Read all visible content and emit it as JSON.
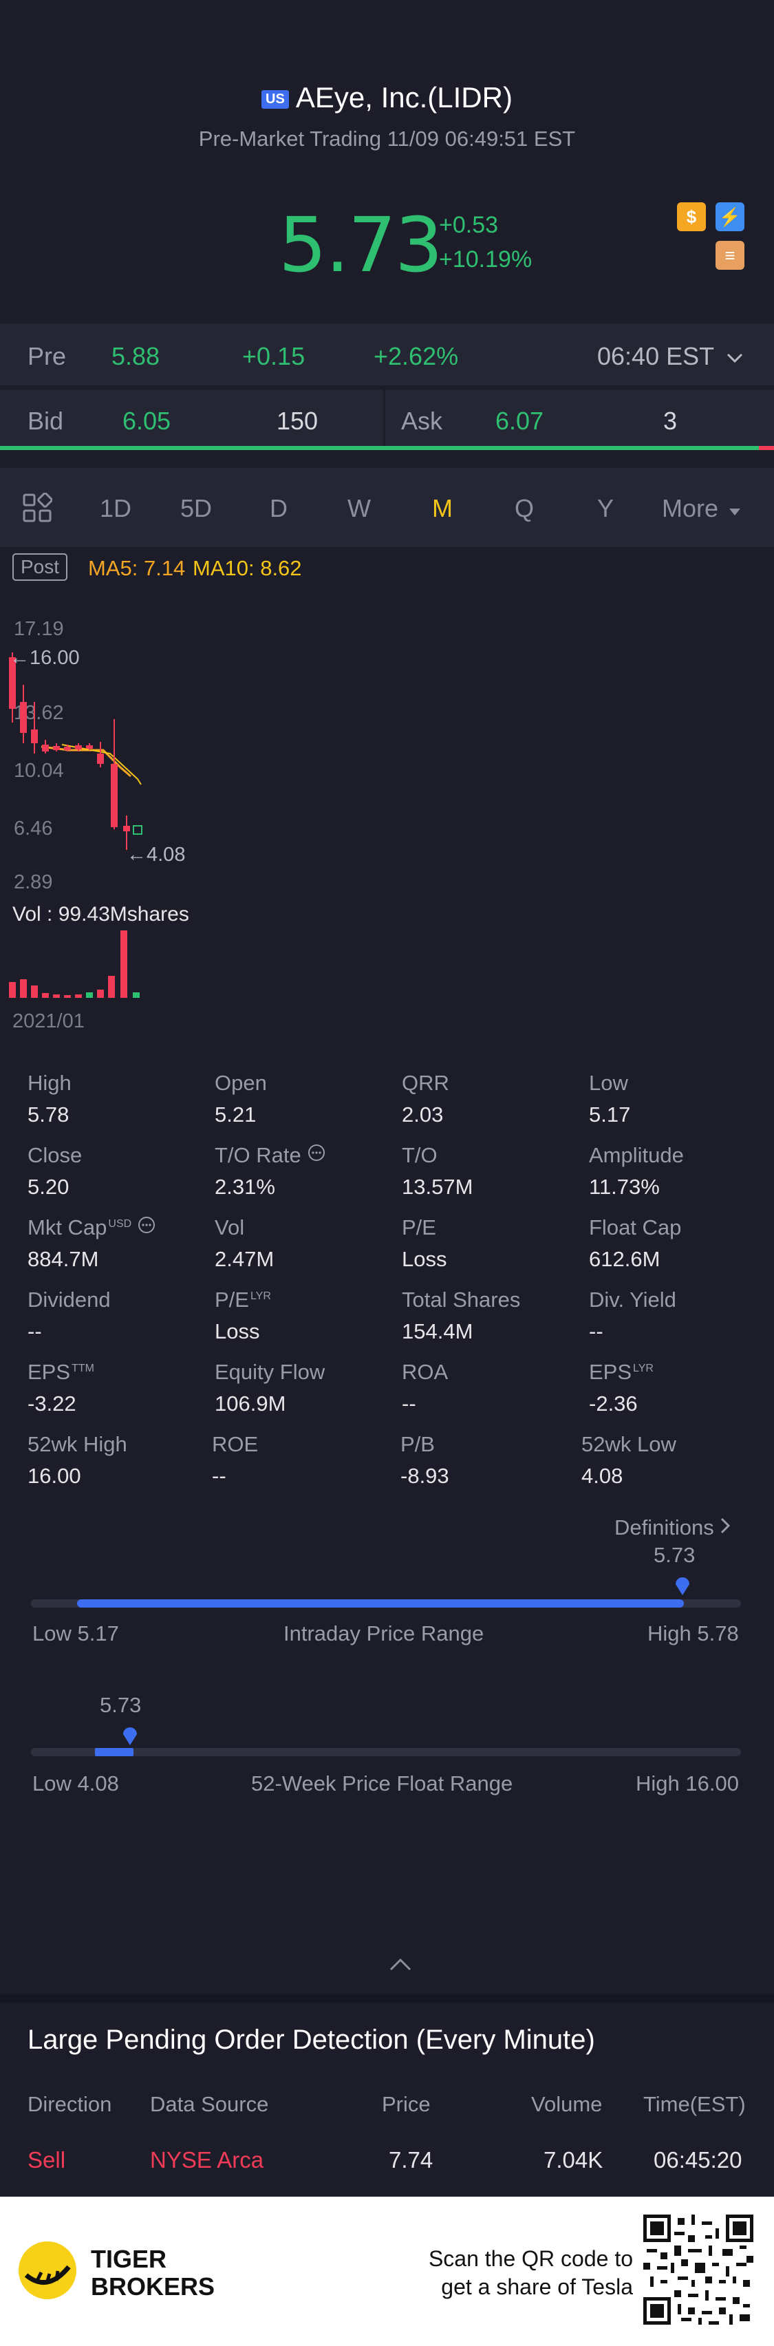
{
  "header": {
    "market_badge": "US",
    "title": "AEye, Inc.(LIDR)",
    "subtitle": "Pre-Market Trading 11/09 06:49:51 EST"
  },
  "quote": {
    "price": "5.73",
    "change": "+0.53",
    "change_pct": "+10.19%"
  },
  "premarket": {
    "label": "Pre",
    "price": "5.88",
    "change": "+0.15",
    "change_pct": "+2.62%",
    "time": "06:40 EST"
  },
  "orderbook": {
    "bid_label": "Bid",
    "bid_price": "6.05",
    "bid_size": "150",
    "ask_label": "Ask",
    "ask_price": "6.07",
    "ask_size": "3",
    "bid_ratio": 0.98
  },
  "tabs": [
    "1D",
    "5D",
    "D",
    "W",
    "M",
    "Q",
    "Y",
    "More"
  ],
  "active_tab": "M",
  "indicators": {
    "session": "Post",
    "ma5": "MA5: 7.14",
    "ma10": "MA10: 8.62"
  },
  "chart_data": {
    "type": "candlestick",
    "y_ticks": [
      "17.19",
      "13.62",
      "10.04",
      "6.46",
      "2.89"
    ],
    "ylim": [
      2.89,
      17.19
    ],
    "annotations": [
      "16.00",
      "4.08"
    ],
    "volume_label": "Vol  : 99.43Mshares",
    "x_label": "2021/01"
  },
  "stats": [
    {
      "label": "High",
      "value": "5.78"
    },
    {
      "label": "Open",
      "value": "5.21"
    },
    {
      "label": "QRR",
      "value": "2.03"
    },
    {
      "label": "Low",
      "value": "5.17"
    },
    {
      "label": "Close",
      "value": "5.20"
    },
    {
      "label": "T/O Rate",
      "value": "2.31%"
    },
    {
      "label": "T/O",
      "value": "13.57M"
    },
    {
      "label": "Amplitude",
      "value": "11.73%"
    },
    {
      "label": "Mkt Cap",
      "sup": "USD",
      "value": "884.7M"
    },
    {
      "label": "Vol",
      "value": "2.47M"
    },
    {
      "label": "P/E",
      "value": "Loss"
    },
    {
      "label": "Float Cap",
      "value": "612.6M"
    },
    {
      "label": "Dividend",
      "value": "--"
    },
    {
      "label": "P/E",
      "sup": "LYR",
      "value": "Loss"
    },
    {
      "label": "Total Shares",
      "value": "154.4M"
    },
    {
      "label": "Div. Yield",
      "value": "--"
    },
    {
      "label": "EPS",
      "sup": "TTM",
      "value": "-3.22"
    },
    {
      "label": "Equity Flow",
      "value": "106.9M"
    },
    {
      "label": "ROA",
      "value": "--"
    },
    {
      "label": "EPS",
      "sup": "LYR",
      "value": "-2.36"
    },
    {
      "label": "52wk High",
      "value": "16.00"
    },
    {
      "label": "ROE",
      "value": "--"
    },
    {
      "label": "P/B",
      "value": "-8.93"
    },
    {
      "label": "52wk Low",
      "value": "4.08"
    }
  ],
  "definitions_link": "Definitions",
  "intraday_range": {
    "current": "5.73",
    "low": "Low 5.17",
    "title": "Intraday Price Range",
    "high": "High 5.78",
    "position": 0.92
  },
  "week52_range": {
    "current": "5.73",
    "low": "Low 4.08",
    "title": "52-Week Price Float Range",
    "high": "High 16.00",
    "position": 0.14
  },
  "pending_orders": {
    "title": "Large Pending Order Detection (Every Minute)",
    "columns": [
      "Direction",
      "Data Source",
      "Price",
      "Volume",
      "Time(EST)"
    ],
    "rows": [
      {
        "direction": "Sell",
        "source": "NYSE Arca",
        "price": "7.74",
        "volume": "7.04K",
        "time": "06:45:20"
      }
    ]
  },
  "footer": {
    "brand_line1": "TIGER",
    "brand_line2": "BROKERS",
    "scan_line1": "Scan the QR code to",
    "scan_line2": "get a share of Tesla"
  },
  "colors": {
    "up": "#2fbf71",
    "down": "#f23b57",
    "accent": "#3d6ef0",
    "active_tab": "#f5c518",
    "ma5": "#f5a623",
    "ma10": "#f5c518"
  }
}
